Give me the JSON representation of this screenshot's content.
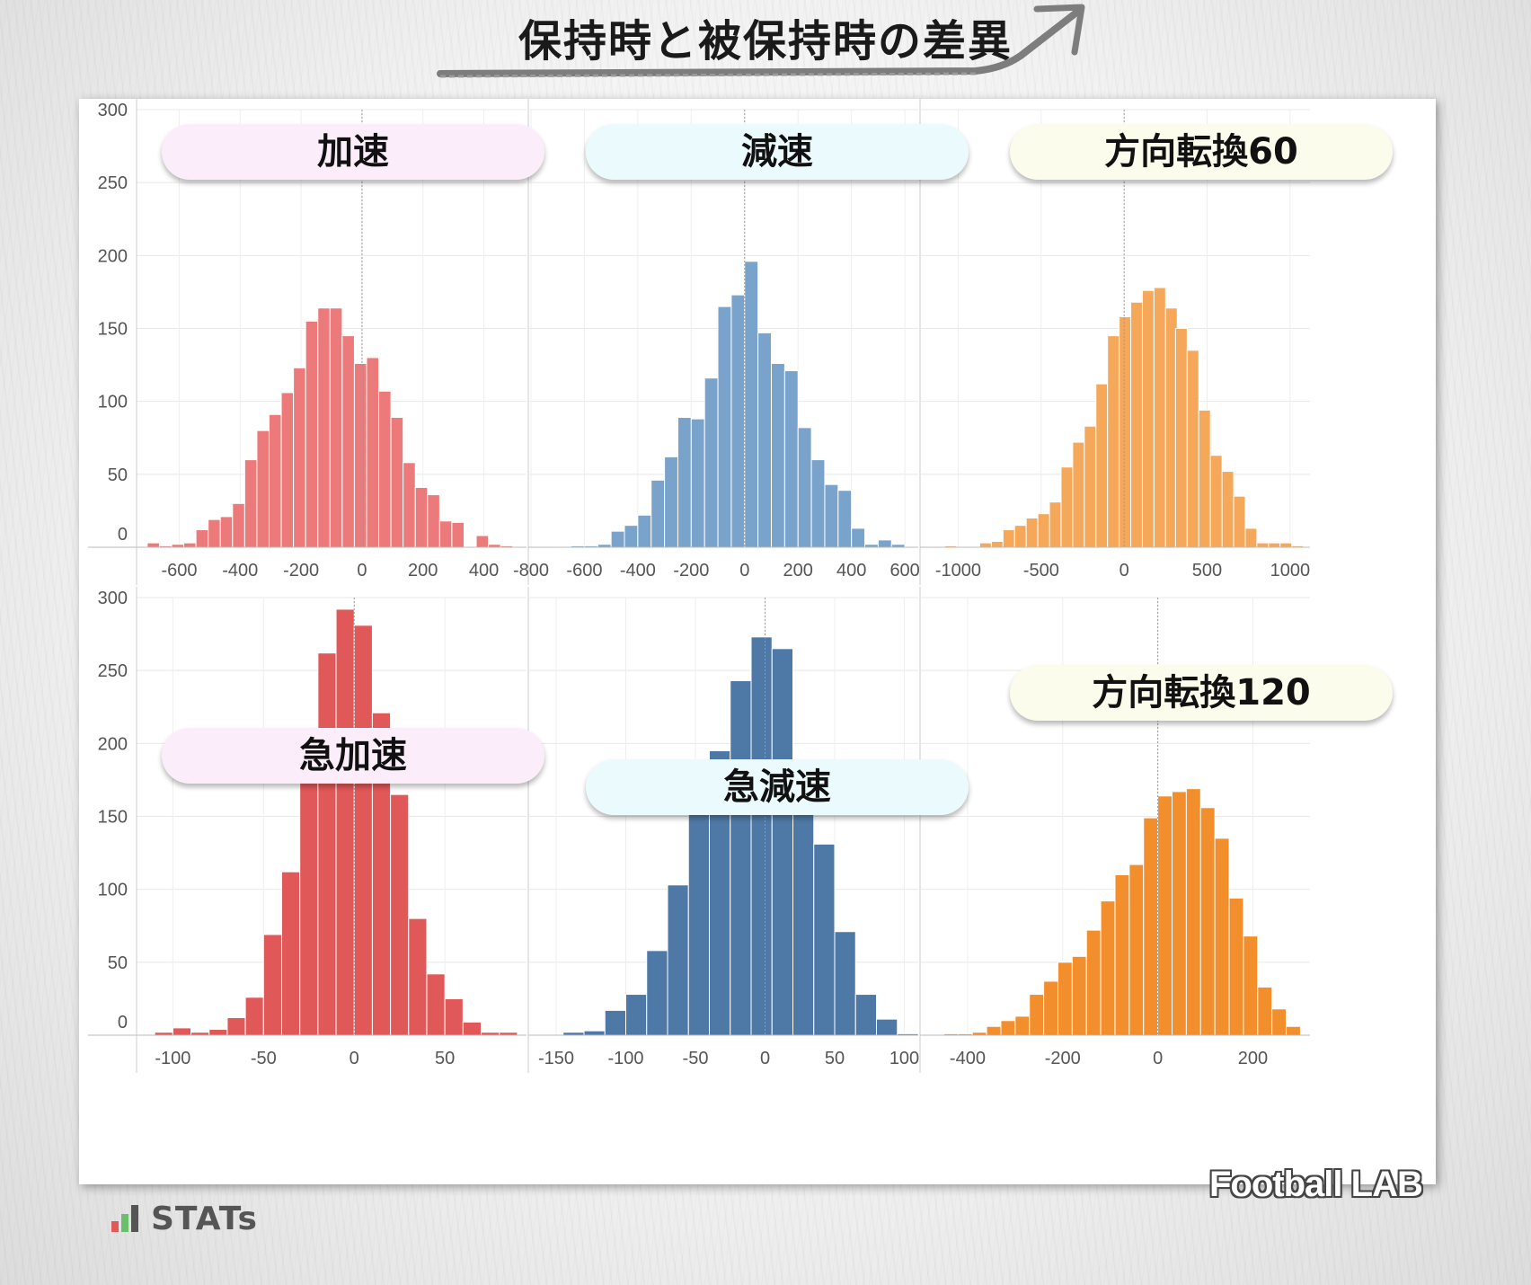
{
  "page": {
    "title": "保持時と被保持時の差異",
    "brand_logo": "STATs",
    "watermark": "Football LAB",
    "colors": {
      "background": "#f2f2f2",
      "panel": "#ffffff",
      "grid": "#e6e6e6",
      "zero_line": "#999999"
    }
  },
  "chart_data": [
    {
      "type": "bar",
      "title": "加速",
      "label_color": "#fbeefa",
      "color": "#ec7a7a",
      "x": [
        -745,
        -705,
        -665,
        -625,
        -585,
        -545,
        -505,
        -465,
        -425,
        -385,
        -345,
        -305,
        -265,
        -225,
        -185,
        -145,
        -105,
        -65,
        -25,
        15,
        55,
        95,
        135,
        175,
        215,
        255,
        295,
        335,
        375,
        415,
        455,
        495,
        535,
        575
      ],
      "values": [
        0,
        3,
        1,
        2,
        3,
        12,
        19,
        21,
        30,
        60,
        80,
        91,
        106,
        123,
        155,
        164,
        164,
        145,
        126,
        130,
        107,
        89,
        58,
        41,
        36,
        18,
        17,
        0,
        8,
        2,
        1,
        0,
        0,
        0
      ],
      "ylim": [
        0,
        300
      ],
      "xlim": [
        -740,
        540
      ],
      "xticks": [
        -600,
        -400,
        -200,
        0,
        200,
        400
      ],
      "yticks": [
        0,
        50,
        100,
        150,
        200,
        250,
        300
      ],
      "grid": true
    },
    {
      "type": "bar",
      "title": "減速",
      "label_color": "#ebfbfd",
      "color": "#79a3cb",
      "x": [
        -750,
        -700,
        -650,
        -600,
        -550,
        -500,
        -450,
        -400,
        -350,
        -300,
        -250,
        -200,
        -150,
        -100,
        -50,
        0,
        50,
        100,
        150,
        200,
        250,
        300,
        350,
        400,
        450,
        500,
        550
      ],
      "values": [
        0,
        0,
        1,
        1,
        2,
        11,
        15,
        22,
        46,
        62,
        89,
        88,
        116,
        165,
        173,
        196,
        147,
        126,
        121,
        82,
        60,
        43,
        39,
        13,
        2,
        5,
        2
      ],
      "ylim": [
        0,
        300
      ],
      "xlim": [
        -810,
        650
      ],
      "xticks": [
        -800,
        -600,
        -400,
        -200,
        0,
        200,
        400,
        600
      ],
      "yticks": [
        0,
        50,
        100,
        150,
        200,
        250,
        300
      ],
      "grid": true
    },
    {
      "type": "bar",
      "title": "方向転換60",
      "label_color": "#fcfced",
      "color": "#f6a85a",
      "x": [
        -1150,
        -1080,
        -1010,
        -940,
        -870,
        -800,
        -730,
        -660,
        -590,
        -520,
        -450,
        -380,
        -310,
        -240,
        -170,
        -100,
        -30,
        40,
        110,
        180,
        250,
        310,
        380,
        450,
        520,
        590,
        660,
        730,
        800,
        870,
        940,
        1010
      ],
      "values": [
        0,
        1,
        0,
        0,
        3,
        4,
        12,
        15,
        20,
        23,
        31,
        55,
        72,
        83,
        112,
        145,
        158,
        168,
        176,
        178,
        164,
        150,
        135,
        94,
        63,
        52,
        35,
        13,
        3,
        3,
        3,
        1
      ],
      "ylim": [
        0,
        300
      ],
      "xlim": [
        -1230,
        1120
      ],
      "xticks": [
        -1000,
        -500,
        0,
        500,
        1000
      ],
      "yticks": [
        0,
        50,
        100,
        150,
        200,
        250,
        300
      ],
      "grid": true
    },
    {
      "type": "bar",
      "title": "急加速",
      "label_color": "#fbeefa",
      "color": "#e15858",
      "x": [
        -110,
        -100,
        -90,
        -80,
        -70,
        -60,
        -50,
        -40,
        -30,
        -20,
        -10,
        0,
        10,
        20,
        30,
        40,
        50,
        60,
        70,
        80
      ],
      "values": [
        2,
        5,
        2,
        4,
        12,
        26,
        69,
        112,
        191,
        262,
        292,
        281,
        221,
        165,
        80,
        42,
        25,
        9,
        2,
        2
      ],
      "ylim": [
        0,
        300
      ],
      "xlim": [
        -120,
        95
      ],
      "xticks": [
        -100,
        -50,
        0,
        50
      ],
      "yticks": [
        0,
        50,
        100,
        150,
        200,
        250,
        300
      ],
      "grid": true
    },
    {
      "type": "bar",
      "title": "急減速",
      "label_color": "#ebfbfd",
      "color": "#4e79a7",
      "x": [
        -160,
        -145,
        -130,
        -115,
        -100,
        -85,
        -70,
        -55,
        -40,
        -25,
        -10,
        5,
        20,
        35,
        50,
        65,
        80,
        95
      ],
      "values": [
        0,
        2,
        3,
        17,
        28,
        58,
        103,
        171,
        195,
        243,
        273,
        265,
        182,
        131,
        71,
        28,
        11,
        1
      ],
      "ylim": [
        0,
        300
      ],
      "xlim": [
        -170,
        110
      ],
      "xticks": [
        -150,
        -100,
        -50,
        0,
        50,
        100
      ],
      "yticks": [
        0,
        50,
        100,
        150,
        200,
        250,
        300
      ],
      "grid": true
    },
    {
      "type": "bar",
      "title": "方向転換120",
      "label_color": "#fcfced",
      "color": "#f28e2b",
      "x": [
        -480,
        -450,
        -420,
        -390,
        -360,
        -330,
        -300,
        -270,
        -240,
        -210,
        -180,
        -150,
        -120,
        -90,
        -60,
        -30,
        0,
        30,
        60,
        90,
        120,
        150,
        180,
        210,
        240,
        270,
        300
      ],
      "values": [
        0,
        1,
        1,
        2,
        6,
        10,
        13,
        28,
        37,
        50,
        54,
        72,
        92,
        110,
        117,
        149,
        164,
        167,
        169,
        156,
        135,
        94,
        68,
        33,
        18,
        6,
        0
      ],
      "ylim": [
        0,
        300
      ],
      "xlim": [
        -500,
        320
      ],
      "xticks": [
        -400,
        -200,
        0,
        200
      ],
      "yticks": [
        0,
        50,
        100,
        150,
        200,
        250,
        300
      ],
      "grid": true
    }
  ]
}
